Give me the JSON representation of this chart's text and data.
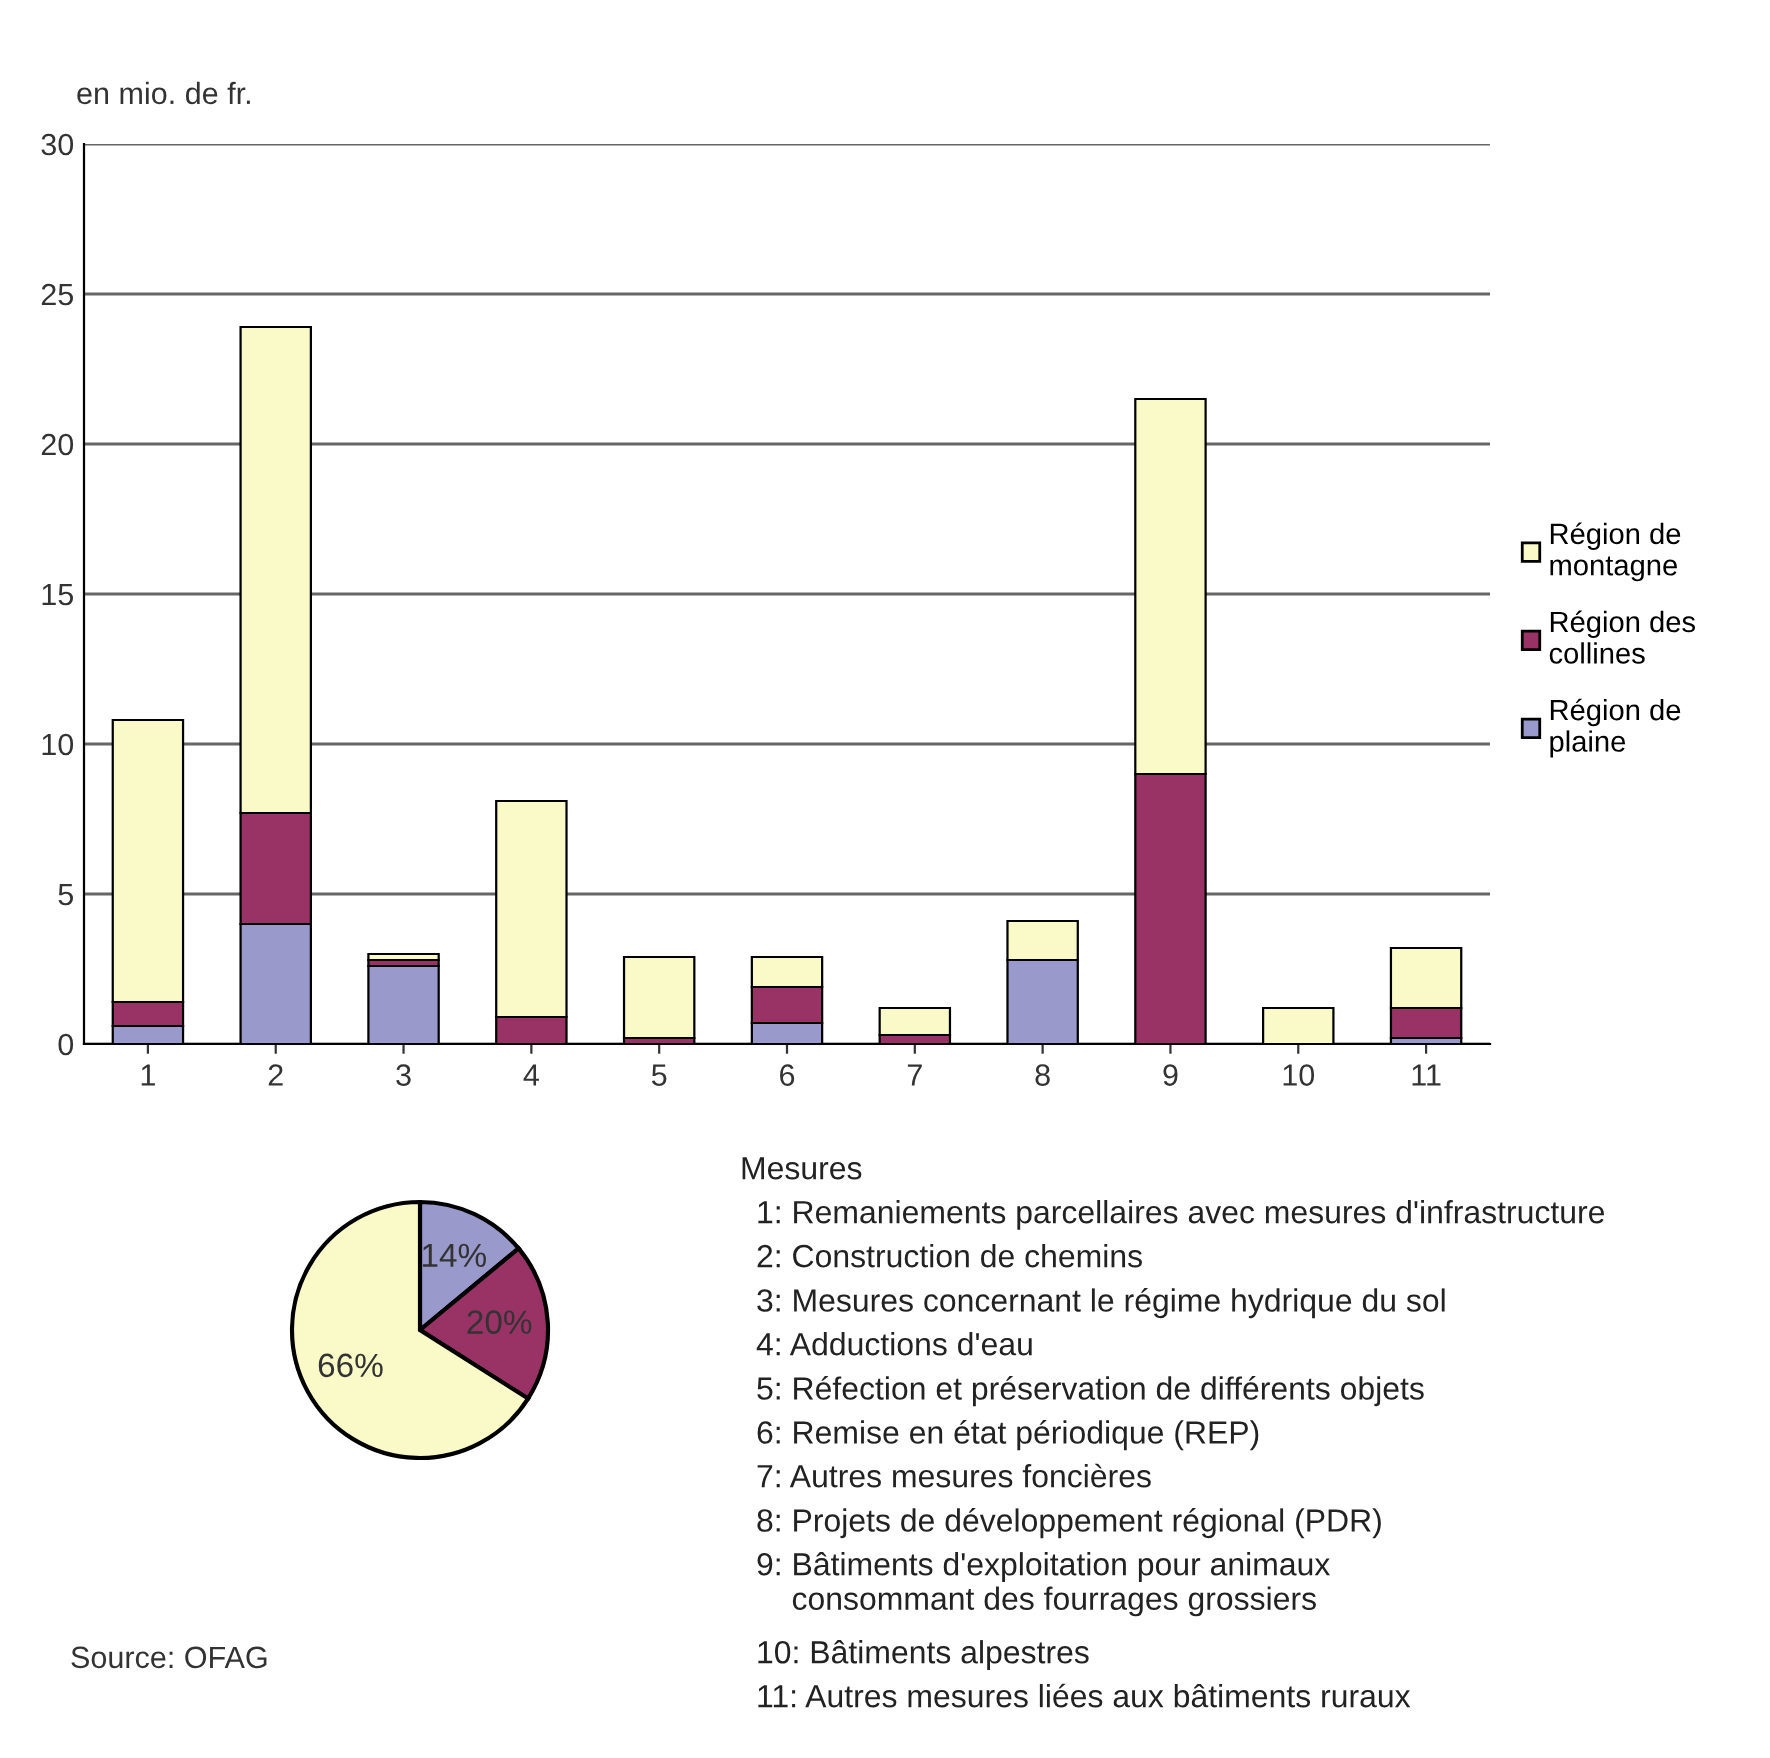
{
  "chart_data": [
    {
      "type": "bar",
      "stacked": true,
      "ylabel": "en mio. de fr.",
      "categories": [
        "1",
        "2",
        "3",
        "4",
        "5",
        "6",
        "7",
        "8",
        "9",
        "10",
        "11"
      ],
      "series": [
        {
          "name": "Région de plaine",
          "color": "#9999cc",
          "values": [
            0.6,
            4.0,
            2.6,
            0,
            0,
            0.7,
            0,
            2.8,
            0,
            0,
            0.2
          ]
        },
        {
          "name": "Région des collines",
          "color": "#993366",
          "values": [
            0.8,
            3.7,
            0.2,
            0.9,
            0.2,
            1.2,
            0.3,
            0,
            9.0,
            0,
            1.0
          ]
        },
        {
          "name": "Région de montagne",
          "color": "#fafac8",
          "values": [
            9.4,
            16.2,
            0.2,
            7.2,
            2.7,
            1.0,
            0.9,
            1.3,
            12.5,
            1.2,
            2.0
          ]
        }
      ],
      "ylim": [
        0,
        30
      ],
      "yticks": [
        0,
        5,
        10,
        15,
        20,
        25,
        30
      ],
      "grid": "y",
      "legend": "right",
      "annotations": [
        "Mesures",
        "1: Remaniements parcellaires avec mesures d'infrastructure",
        "2: Construction de chemins",
        "3: Mesures concernant le régime hydrique du sol",
        "4: Adductions d'eau",
        "5: Réfection et préservation de différents objets",
        "6: Remise en état périodique (REP)",
        "7: Autres mesures foncières",
        "8: Projets de développement régional (PDR)",
        "9: Bâtiments d'exploitation pour animaux\n    consommant des fourrages grossiers",
        "10: Bâtiments alpestres",
        "11: Autres mesures liées aux bâtiments ruraux",
        "Source: OFAG"
      ]
    },
    {
      "type": "pie",
      "categories": [
        null,
        null,
        null
      ],
      "values": [
        14,
        20,
        66
      ],
      "colors": [
        "#9999cc",
        "#993366",
        "#fafac8"
      ],
      "value_labels": [
        "14%",
        "20%",
        "66%"
      ]
    }
  ]
}
